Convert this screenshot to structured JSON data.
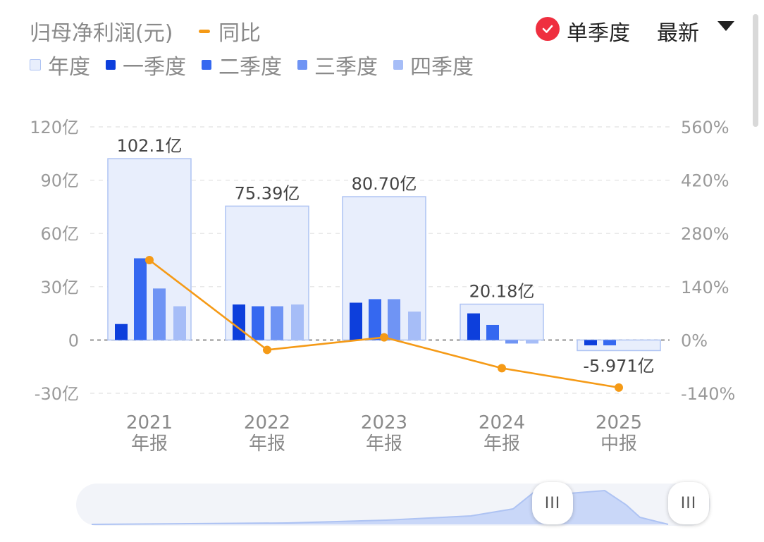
{
  "legend": {
    "title": "归母净利润(元)",
    "yoy_label": "同比",
    "series_labels": [
      "年度",
      "一季度",
      "二季度",
      "三季度",
      "四季度"
    ]
  },
  "controls": {
    "single_quarter_label": "单季度",
    "sort_select_value": "最新"
  },
  "navigator": {
    "handle_label": "III"
  },
  "colors": {
    "annual": "#e8eefc",
    "annual_border": "#aec3f3",
    "q1": "#0d3fdc",
    "q2": "#3568f0",
    "q3": "#6f94f4",
    "q4": "#a6bdf7",
    "yoy": "#f59a16",
    "check": "#ef2f3f"
  },
  "chart_data": {
    "type": "bar",
    "categories": [
      "2021\n年报",
      "2022\n年报",
      "2023\n年报",
      "2024\n年报",
      "2025\n中报"
    ],
    "left_axis": {
      "ticks": [
        "120亿",
        "90亿",
        "60亿",
        "30亿",
        "0",
        "-30亿"
      ],
      "ylim": [
        -30,
        120
      ],
      "unit": "亿"
    },
    "right_axis": {
      "ticks": [
        "560%",
        "420%",
        "280%",
        "140%",
        "0%",
        "-140%"
      ],
      "ylim": [
        -140,
        560
      ]
    },
    "series": [
      {
        "name": "年度",
        "values": [
          102.1,
          75.39,
          80.7,
          20.18,
          -5.971
        ],
        "labels": [
          "102.1亿",
          "75.39亿",
          "80.70亿",
          "20.18亿",
          "-5.971亿"
        ]
      },
      {
        "name": "一季度",
        "values": [
          9,
          20,
          21,
          15,
          -3
        ]
      },
      {
        "name": "二季度",
        "values": [
          46,
          19,
          23,
          8.5,
          -3
        ]
      },
      {
        "name": "三季度",
        "values": [
          29,
          19,
          23,
          -2,
          null
        ]
      },
      {
        "name": "四季度",
        "values": [
          19,
          20,
          16,
          -2,
          null
        ]
      },
      {
        "name": "同比",
        "type": "line",
        "axis": "right",
        "values": [
          210,
          -26,
          7,
          -74,
          -125
        ]
      }
    ],
    "grid": true,
    "legend_position": "top-left"
  }
}
